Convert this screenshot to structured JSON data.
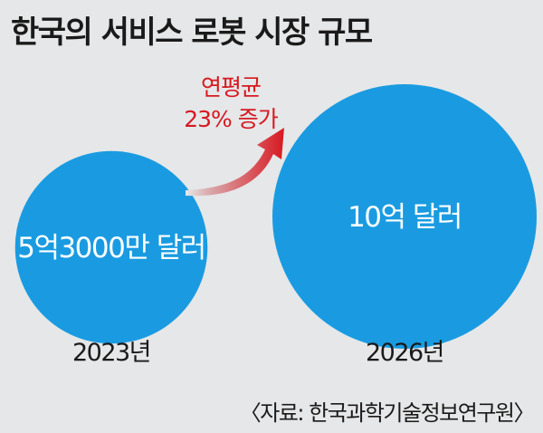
{
  "title": "한국의 서비스 로봇 시장 규모",
  "source": "〈자료: 한국과학기술정보연구원〉",
  "colors": {
    "background": "#e6e7e8",
    "bubble": "#1a9be1",
    "arrow": "#d71921",
    "text": "#1a1a1a"
  },
  "icons": {
    "growth_arrow": "curved-arrow-icon"
  },
  "chart_data": {
    "type": "bubble",
    "title": "한국의 서비스 로봇 시장 규모",
    "unit": "달러",
    "points": [
      {
        "x": "2023년",
        "value": 530000000,
        "label": "5억3000만 달러"
      },
      {
        "x": "2026년",
        "value": 1000000000,
        "label": "10억 달러"
      }
    ],
    "annotation": {
      "line1": "연평균",
      "line2": "23% 증가"
    }
  }
}
